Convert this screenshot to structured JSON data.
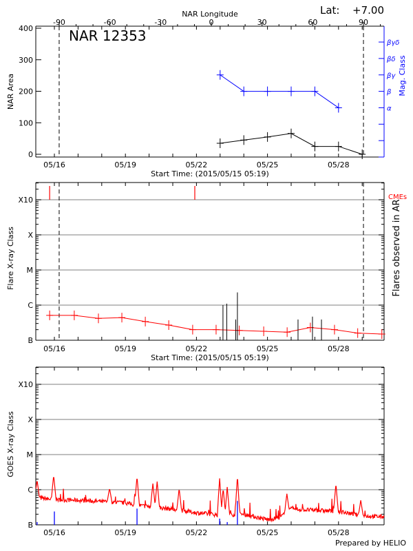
{
  "header": {
    "lat_label": "Lat:",
    "lat_value": "+7.00",
    "region_title": "NAR 12353",
    "footer": "Prepared by HELIO"
  },
  "colors": {
    "area": "#000000",
    "mag_class": "#0000ff",
    "flare_line": "#ff0000",
    "cme": "#ff0000",
    "flare_bars": "#000000",
    "goes": "#ff0000",
    "goes_events": "#0000ff",
    "grid": "#999999"
  },
  "chart_data": [
    {
      "type": "line",
      "title": "NAR 12353",
      "xlabel": "Start Time: (2015/05/15 05:19)",
      "ylabel": "NAR Area",
      "y2label": "Mag. Class",
      "top_xlabel": "NAR Longitude",
      "x_ticks": [
        "05/16",
        "05/19",
        "05/22",
        "05/25",
        "05/28"
      ],
      "x_tick_days": [
        16,
        19,
        22,
        25,
        28
      ],
      "x_range_days": [
        15.22,
        29.93
      ],
      "ylim": [
        0,
        400
      ],
      "y_ticks": [
        0,
        100,
        200,
        300,
        400
      ],
      "top_ticks": [
        -90,
        -60,
        -30,
        0,
        30,
        60,
        90
      ],
      "limb_longitudes": [
        -90,
        90
      ],
      "y2_classes": [
        "α",
        "β",
        "βγ",
        "βδ",
        "βγδ"
      ],
      "series": [
        {
          "name": "NAR Area",
          "x_days": [
            23,
            24,
            25,
            26,
            27,
            28,
            29
          ],
          "values": [
            35,
            45,
            55,
            66,
            25,
            25,
            0
          ]
        },
        {
          "name": "Mag. Class",
          "x_days": [
            23,
            24,
            25,
            26,
            27,
            28
          ],
          "values": [
            "βγ",
            "β",
            "β",
            "β",
            "β",
            "α"
          ]
        }
      ]
    },
    {
      "type": "line",
      "xlabel": "Start Time: (2015/05/15 05:19)",
      "ylabel": "Flare X-ray Class",
      "y2label": "Flares observed in AR",
      "cme_label": "CMEs",
      "y_scale": "log",
      "y_ticks": [
        "B",
        "C",
        "M",
        "X",
        "X10"
      ],
      "y_tick_values": [
        1e-07,
        1e-06,
        1e-05,
        0.0001,
        0.001
      ],
      "ylim": [
        1e-07,
        0.0012
      ],
      "grid": true,
      "background_level": {
        "x_days": [
          15.8,
          16.84,
          17.86,
          18.85,
          19.84,
          20.83,
          21.84,
          22.83,
          23.81,
          24.84,
          25.83,
          26.81,
          27.83,
          28.81,
          29.83
        ],
        "values": [
          5.1e-07,
          5.1e-07,
          4.2e-07,
          4.4e-07,
          3.4e-07,
          2.7e-07,
          2e-07,
          2e-07,
          1.9e-07,
          1.8e-07,
          1.7e-07,
          2.3e-07,
          2e-07,
          1.6e-07,
          1.5e-07
        ]
      },
      "flares": {
        "x_days": [
          23.12,
          23.28,
          23.66,
          23.73,
          26.29,
          26.9,
          27.28
        ],
        "values": [
          1e-06,
          1.1e-06,
          3.9e-07,
          2.3e-06,
          3.9e-07,
          4.7e-07,
          3.9e-07
        ]
      },
      "cmes": {
        "x_days": [
          15.8,
          21.93
        ]
      }
    },
    {
      "type": "line",
      "ylabel": "GOES X-ray Class",
      "y_scale": "log",
      "y_ticks": [
        "B",
        "C",
        "M",
        "X",
        "X10"
      ],
      "y_tick_values": [
        1e-07,
        1e-06,
        1e-05,
        0.0001,
        0.001
      ],
      "ylim": [
        1e-07,
        0.0012
      ],
      "grid": true,
      "baseline": {
        "x_days": [
          15.22,
          16,
          17,
          18,
          19,
          19.5,
          20,
          21,
          22,
          23,
          24,
          25,
          25.5,
          26,
          27,
          27.5,
          28,
          29,
          29.93
        ],
        "values": [
          6e-07,
          5.2e-07,
          5e-07,
          4.6e-07,
          4.2e-07,
          3.6e-07,
          3.3e-07,
          2.8e-07,
          2.2e-07,
          1.9e-07,
          2e-07,
          1.4e-07,
          1.6e-07,
          2.8e-07,
          2.6e-07,
          2.5e-07,
          2.4e-07,
          1.8e-07,
          1.7e-07
        ]
      },
      "peaks": {
        "x_days": [
          15.27,
          15.97,
          18.33,
          19.49,
          20.16,
          20.34,
          21.27,
          22.98,
          23.13,
          23.3,
          23.73,
          25.82,
          27.89,
          28.94
        ],
        "values": [
          1.9e-06,
          2.6e-06,
          1.1e-06,
          2.4e-06,
          1.5e-06,
          1.7e-06,
          1.1e-06,
          2.1e-06,
          1.1e-06,
          1.2e-06,
          2.5e-06,
          7.7e-07,
          1.5e-06,
          5e-07
        ]
      },
      "events": {
        "x_days": [
          15.27,
          16.0,
          19.49,
          22.98,
          23.3,
          23.73
        ],
        "values": [
          1.2e-07,
          2.4e-07,
          2.9e-07,
          1.5e-07,
          1.2e-07,
          4.8e-07
        ]
      }
    }
  ]
}
